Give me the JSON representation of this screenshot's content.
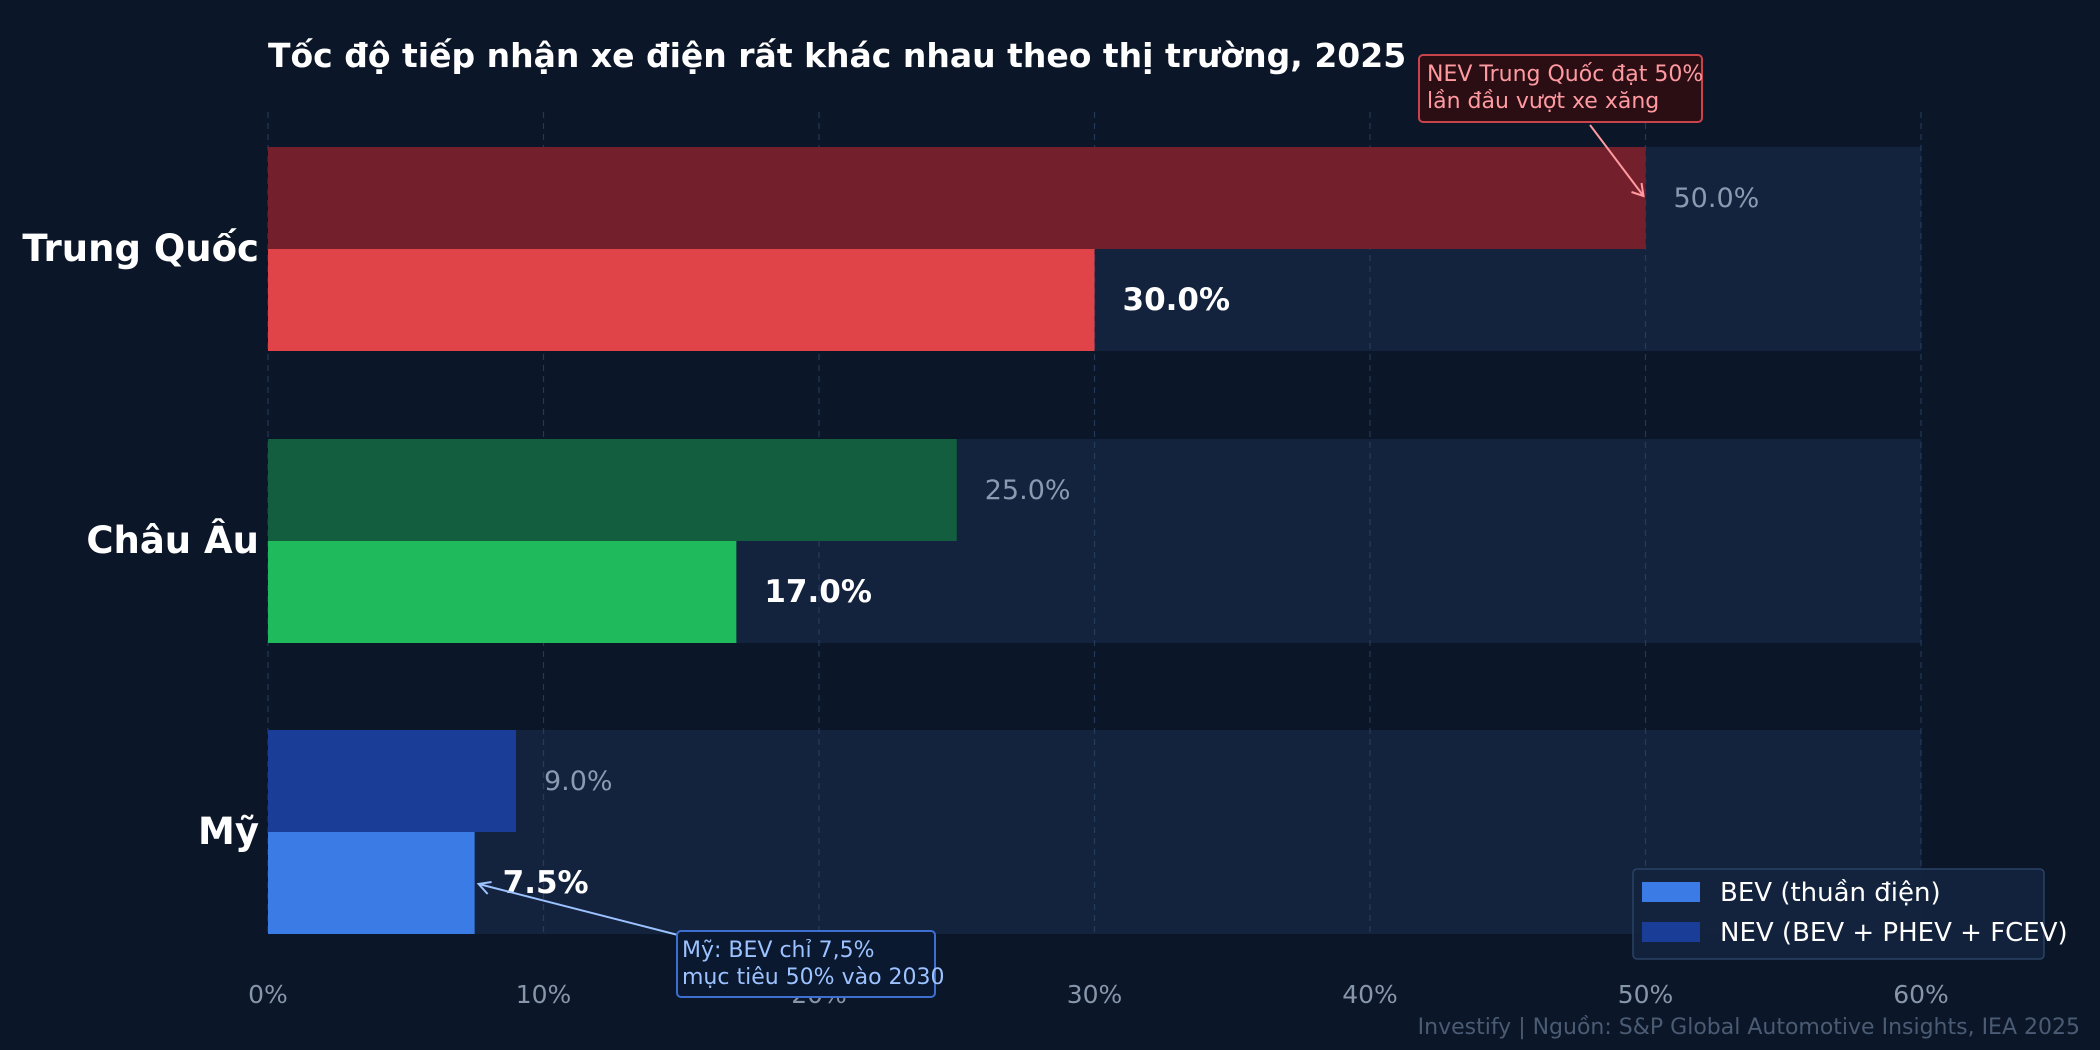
{
  "chart_data": {
    "type": "bar",
    "orientation": "horizontal",
    "title": "Tốc độ tiếp nhận xe điện rất khác nhau theo thị trường, 2025",
    "categories": [
      "Trung Quốc",
      "Châu Âu",
      "Mỹ"
    ],
    "series": [
      {
        "name": "BEV (thuần điện)",
        "values": [
          30.0,
          17.0,
          7.5
        ],
        "value_labels": [
          "30.0%",
          "17.0%",
          "7.5%"
        ],
        "colors": [
          "#e04448",
          "#1fba5b",
          "#3a7be6"
        ]
      },
      {
        "name": "NEV (BEV + PHEV + FCEV)",
        "values": [
          50.0,
          25.0,
          9.0
        ],
        "value_labels": [
          "50.0%",
          "25.0%",
          "9.0%"
        ],
        "colors": [
          "#74202c",
          "#125e3e",
          "#1a3d98"
        ]
      }
    ],
    "xlim": [
      0,
      60
    ],
    "x_ticks": [
      "0%",
      "10%",
      "20%",
      "30%",
      "40%",
      "50%",
      "60%"
    ],
    "grid": "vertical dashed",
    "legend_position": "bottom-right",
    "annotations": [
      {
        "lines": [
          "NEV Trung Quốc đạt 50%",
          "lần đầu vượt xe xăng"
        ],
        "target_category": "Trung Quốc",
        "target_series": "NEV (BEV + PHEV + FCEV)",
        "color": "#ff9aa0"
      },
      {
        "lines": [
          "Mỹ: BEV chỉ 7,5%",
          "mục tiêu 50% vào 2030"
        ],
        "target_category": "Mỹ",
        "target_series": "BEV (thuần điện)",
        "color": "#9cc2ff"
      }
    ],
    "source": "Investify  |  Nguồn: S&P Global Automotive Insights, IEA 2025"
  }
}
